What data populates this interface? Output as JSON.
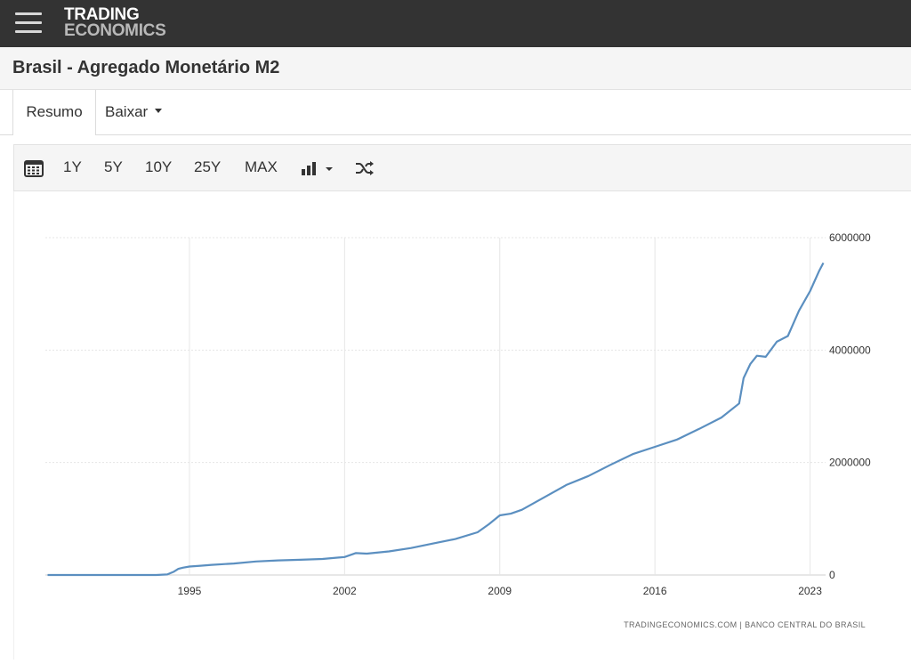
{
  "header": {
    "logo_line1": "TRADING",
    "logo_line2": "ECONOMICS"
  },
  "page": {
    "title": "Brasil - Agregado Monetário M2"
  },
  "tabs": [
    {
      "label": "Resumo"
    },
    {
      "label": "Baixar"
    }
  ],
  "toolbar": {
    "ranges": [
      "1Y",
      "5Y",
      "10Y",
      "25Y",
      "MAX"
    ]
  },
  "colors": {
    "line": "#5b8fc0",
    "topbar": "#333333",
    "grid": "#e6e6e6"
  },
  "source": "TRADINGECONOMICS.COM | BANCO CENTRAL DO BRASIL",
  "chart_data": {
    "type": "line",
    "title": "",
    "xlabel": "",
    "ylabel": "",
    "xlim": [
      1988.5,
      2023.7
    ],
    "ylim": [
      0,
      6000000
    ],
    "grid": true,
    "y_axis_side": "right",
    "x_ticks": [
      1995,
      2002,
      2009,
      2016,
      2023
    ],
    "y_ticks": [
      0,
      2000000,
      4000000,
      6000000
    ],
    "series": [
      {
        "x": [
          1988.6,
          1992.0,
          1993.5,
          1994.0,
          1994.3,
          1994.5,
          1994.7,
          1995.0,
          1995.5,
          1996.0,
          1997.0,
          1998.0,
          1999.0,
          2000.0,
          2001.0,
          2002.0,
          2002.5,
          2003.0,
          2004.0,
          2005.0,
          2006.0,
          2007.0,
          2008.0,
          2008.5,
          2009.0,
          2009.5,
          2010.0,
          2011.0,
          2012.0,
          2013.0,
          2014.0,
          2015.0,
          2016.0,
          2017.0,
          2018.0,
          2019.0,
          2019.8,
          2020.0,
          2020.3,
          2020.6,
          2021.0,
          2021.5,
          2022.0,
          2022.5,
          2023.0,
          2023.4,
          2023.6
        ],
        "y": [
          0,
          0,
          500,
          10000,
          60000,
          110000,
          130000,
          150000,
          165000,
          180000,
          205000,
          240000,
          260000,
          270000,
          285000,
          320000,
          390000,
          380000,
          420000,
          480000,
          560000,
          640000,
          760000,
          900000,
          1060000,
          1090000,
          1160000,
          1380000,
          1600000,
          1760000,
          1960000,
          2150000,
          2280000,
          2410000,
          2600000,
          2800000,
          3050000,
          3500000,
          3750000,
          3900000,
          3880000,
          4150000,
          4250000,
          4700000,
          5050000,
          5400000,
          5550000
        ]
      }
    ]
  }
}
